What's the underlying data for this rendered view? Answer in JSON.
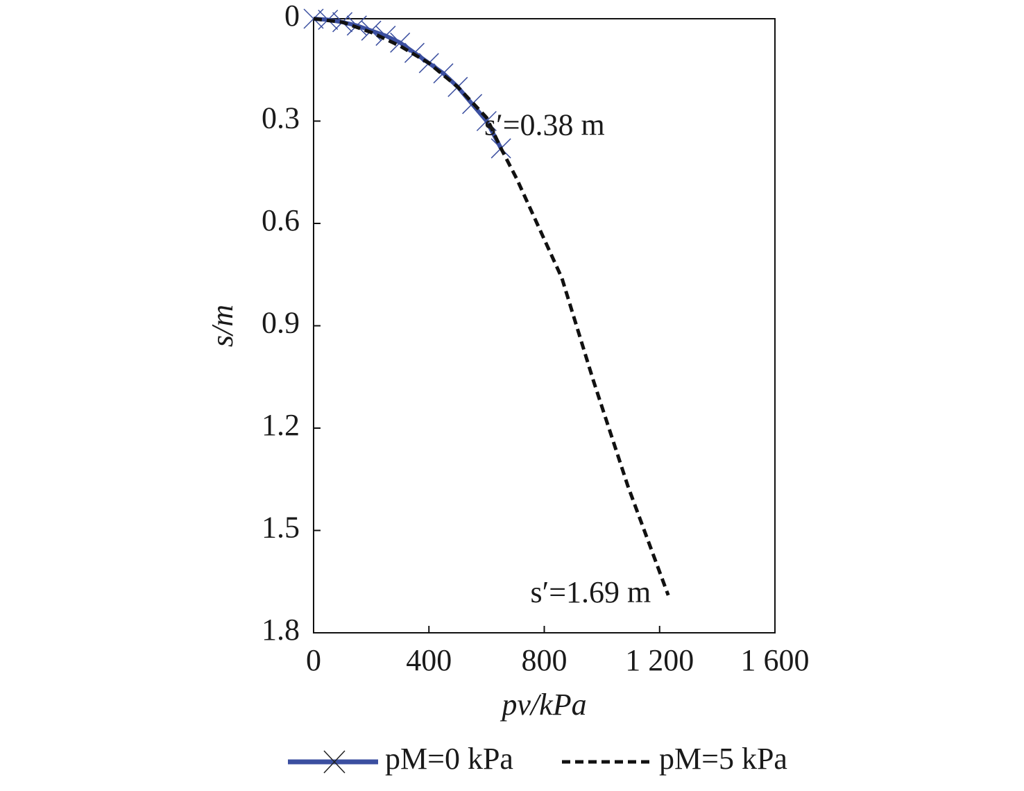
{
  "chart_data": {
    "type": "line",
    "xlabel": "pv/kPa",
    "ylabel": "s/m",
    "x_series_note_free": null,
    "xlim": [
      0,
      1600
    ],
    "xticks": [
      0,
      400,
      800,
      {
        "value": 1200,
        "label": "1 200"
      },
      {
        "value": 1600,
        "label": "1 600"
      }
    ],
    "ylim": [
      0,
      1.8
    ],
    "y_inverted": true,
    "yticks": [
      0,
      0.3,
      0.6,
      0.9,
      1.2,
      1.5,
      1.8
    ],
    "series": [
      {
        "name": "pM=0 kPa",
        "color": "#3b4fa0",
        "style": "solid-x",
        "x": [
          0,
          50,
          100,
          150,
          200,
          250,
          300,
          350,
          400,
          450,
          500,
          550,
          600,
          650
        ],
        "values": [
          0,
          0.003,
          0.01,
          0.02,
          0.035,
          0.05,
          0.07,
          0.1,
          0.13,
          0.16,
          0.2,
          0.25,
          0.3,
          0.38
        ]
      },
      {
        "name": "pM=5 kPa",
        "color": "#111111",
        "style": "dashed",
        "x": [
          0,
          100,
          200,
          300,
          400,
          500,
          600,
          650,
          705,
          861,
          970,
          1090,
          1230
        ],
        "values": [
          0,
          0.01,
          0.04,
          0.08,
          0.13,
          0.2,
          0.29,
          0.38,
          0.47,
          0.76,
          1.06,
          1.37,
          1.69
        ]
      }
    ],
    "annotations": [
      {
        "text": "s′=0.38 m",
        "x": 1010,
        "y": 0.32
      },
      {
        "text": "s′=1.69 m",
        "x": 1170,
        "y": 1.69
      }
    ]
  }
}
